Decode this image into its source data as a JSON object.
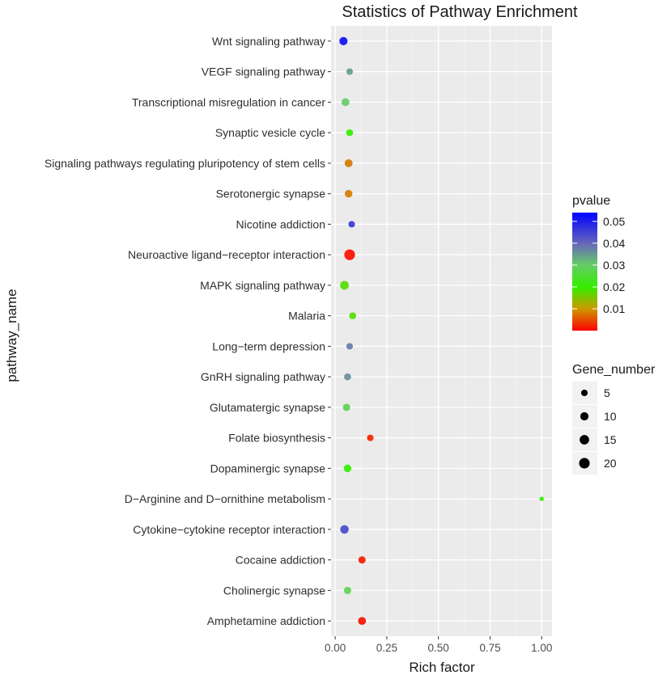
{
  "chart_data": {
    "type": "scatter",
    "title": "Statistics of Pathway Enrichment",
    "xlabel": "Rich factor",
    "ylabel": "pathway_name",
    "xlim": [
      -0.02,
      1.05
    ],
    "xticks": [
      "0.00",
      "0.25",
      "0.50",
      "0.75",
      "1.00"
    ],
    "xtick_values": [
      0,
      0.25,
      0.5,
      0.75,
      1.0
    ],
    "grid": true,
    "categories": [
      "Wnt signaling pathway",
      "VEGF signaling pathway",
      "Transcriptional misregulation in cancer",
      "Synaptic vesicle cycle",
      "Signaling pathways regulating pluripotency of stem cells",
      "Serotonergic synapse",
      "Nicotine addiction",
      "Neuroactive ligand−receptor interaction",
      "MAPK signaling pathway",
      "Malaria",
      "Long−term depression",
      "GnRH signaling pathway",
      "Glutamatergic synapse",
      "Folate biosynthesis",
      "Dopaminergic synapse",
      "D−Arginine and D−ornithine metabolism",
      "Cytokine−cytokine receptor interaction",
      "Cocaine addiction",
      "Cholinergic synapse",
      "Amphetamine addiction"
    ],
    "rich_factor": [
      0.04,
      0.07,
      0.05,
      0.07,
      0.065,
      0.065,
      0.08,
      0.07,
      0.045,
      0.085,
      0.07,
      0.06,
      0.055,
      0.17,
      0.06,
      1.0,
      0.045,
      0.13,
      0.06,
      0.13
    ],
    "gene_number": [
      10,
      5,
      9,
      6,
      9,
      8,
      5,
      21,
      12,
      6,
      5,
      6,
      7,
      5,
      8,
      1,
      11,
      7,
      7,
      9
    ],
    "pvalue": [
      0.052,
      0.035,
      0.03,
      0.02,
      0.008,
      0.008,
      0.046,
      0.001,
      0.018,
      0.018,
      0.038,
      0.036,
      0.028,
      0.002,
      0.02,
      0.02,
      0.044,
      0.002,
      0.028,
      0.001
    ],
    "legend_color": {
      "title": "pvalue",
      "ticks": [
        "0.05",
        "0.04",
        "0.03",
        "0.02",
        "0.01"
      ],
      "tick_values": [
        0.05,
        0.04,
        0.03,
        0.02,
        0.01
      ],
      "range": [
        0.0,
        0.054
      ],
      "stops": [
        {
          "value": 0.0,
          "color": "#ff0000"
        },
        {
          "value": 0.01,
          "color": "#cc9900"
        },
        {
          "value": 0.02,
          "color": "#33ee00"
        },
        {
          "value": 0.03,
          "color": "#66cc66"
        },
        {
          "value": 0.04,
          "color": "#6666bb"
        },
        {
          "value": 0.054,
          "color": "#0000ff"
        }
      ]
    },
    "legend_size": {
      "title": "Gene_number",
      "labels": [
        "5",
        "10",
        "15",
        "20"
      ],
      "values": [
        5,
        10,
        15,
        20
      ]
    }
  }
}
